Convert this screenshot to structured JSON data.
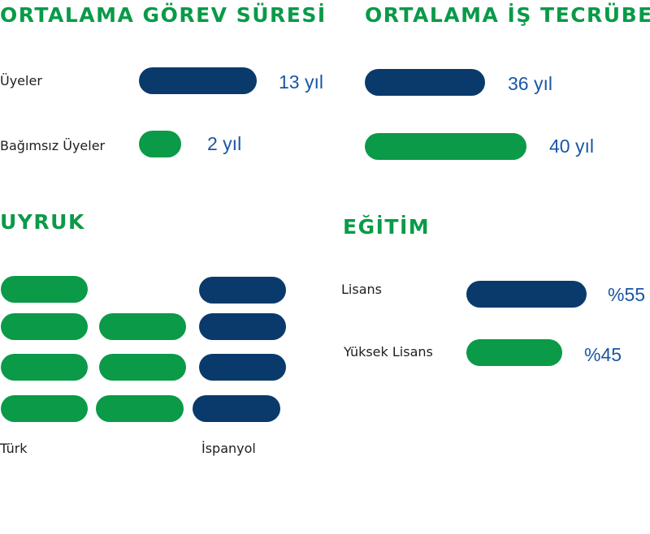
{
  "colors": {
    "green": "#0a9a48",
    "navy": "#0a3a6b",
    "value_text": "#1a56a6",
    "heading": "#0a9a48"
  },
  "tenure": {
    "title": "ORTALAMA GÖREV SÜRESİ",
    "rows": [
      {
        "label": "Üyeler",
        "value_text": "13 yıl",
        "value": 13,
        "color": "navy"
      },
      {
        "label": "Bağımsız Üyeler",
        "value_text": "2 yıl",
        "value": 2,
        "color": "green"
      }
    ]
  },
  "experience": {
    "title": "ORTALAMA İŞ TECRÜBESİ",
    "rows": [
      {
        "value_text": "36 yıl",
        "value": 36,
        "color": "navy"
      },
      {
        "value_text": "40 yıl",
        "value": 40,
        "color": "green"
      }
    ]
  },
  "nationality": {
    "title": "UYRUK",
    "groups": [
      {
        "label": "Türk",
        "count": 7,
        "color": "green"
      },
      {
        "label": "İspanyol",
        "count": 4,
        "color": "navy"
      }
    ]
  },
  "education": {
    "title": "EĞİTİM",
    "rows": [
      {
        "label": "Lisans",
        "value_text": "%55",
        "value": 55,
        "color": "navy"
      },
      {
        "label": "Yüksek Lisans",
        "value_text": "%45",
        "value": 45,
        "color": "green"
      }
    ]
  },
  "chart_data": [
    {
      "type": "bar",
      "title": "ORTALAMA GÖREV SÜRESİ",
      "categories": [
        "Üyeler",
        "Bağımsız Üyeler"
      ],
      "values": [
        13,
        2
      ],
      "unit": "yıl"
    },
    {
      "type": "bar",
      "title": "ORTALAMA İŞ TECRÜBESİ",
      "categories": [
        "",
        ""
      ],
      "values": [
        36,
        40
      ],
      "unit": "yıl"
    },
    {
      "type": "bar",
      "title": "UYRUK",
      "categories": [
        "Türk",
        "İspanyol"
      ],
      "values": [
        7,
        4
      ]
    },
    {
      "type": "bar",
      "title": "EĞİTİM",
      "categories": [
        "Lisans",
        "Yüksek Lisans"
      ],
      "values": [
        55,
        45
      ],
      "unit": "%"
    }
  ]
}
